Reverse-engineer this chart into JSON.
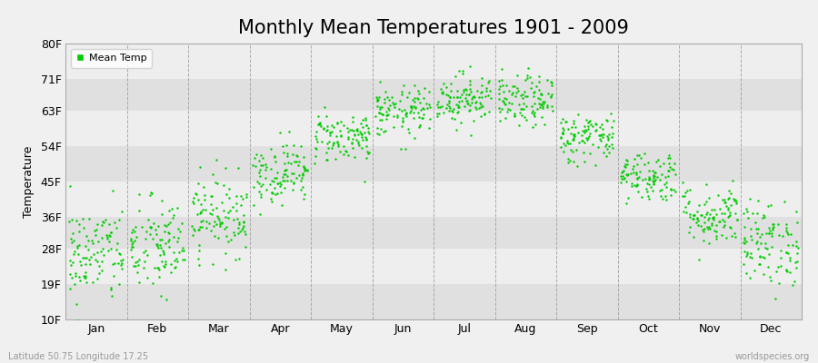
{
  "title": "Monthly Mean Temperatures 1901 - 2009",
  "ylabel": "Temperature",
  "xlabel_labels": [
    "Jan",
    "Feb",
    "Mar",
    "Apr",
    "May",
    "Jun",
    "Jul",
    "Aug",
    "Sep",
    "Oct",
    "Nov",
    "Dec"
  ],
  "ytick_labels": [
    "10F",
    "19F",
    "28F",
    "36F",
    "45F",
    "54F",
    "63F",
    "71F",
    "80F"
  ],
  "ytick_values": [
    10,
    19,
    28,
    36,
    45,
    54,
    63,
    71,
    80
  ],
  "ylim": [
    10,
    80
  ],
  "dot_color": "#00cc00",
  "background_color": "#f0f0f0",
  "plot_bg_color_light": "#eeeeee",
  "plot_bg_color_dark": "#e0e0e0",
  "grid_color": "#999999",
  "legend_label": "Mean Temp",
  "footer_left": "Latitude 50.75 Longitude 17.25",
  "footer_right": "worldspecies.org",
  "title_fontsize": 15,
  "axis_fontsize": 9,
  "monthly_means_C": [
    -3.0,
    -2.0,
    2.5,
    8.5,
    13.5,
    17.0,
    19.0,
    18.5,
    13.5,
    8.0,
    2.5,
    -1.5
  ],
  "monthly_stds_C": [
    3.5,
    3.5,
    2.8,
    2.2,
    1.8,
    1.8,
    1.8,
    1.8,
    1.8,
    1.8,
    2.2,
    3.0
  ],
  "n_years": 109,
  "seed": 42
}
